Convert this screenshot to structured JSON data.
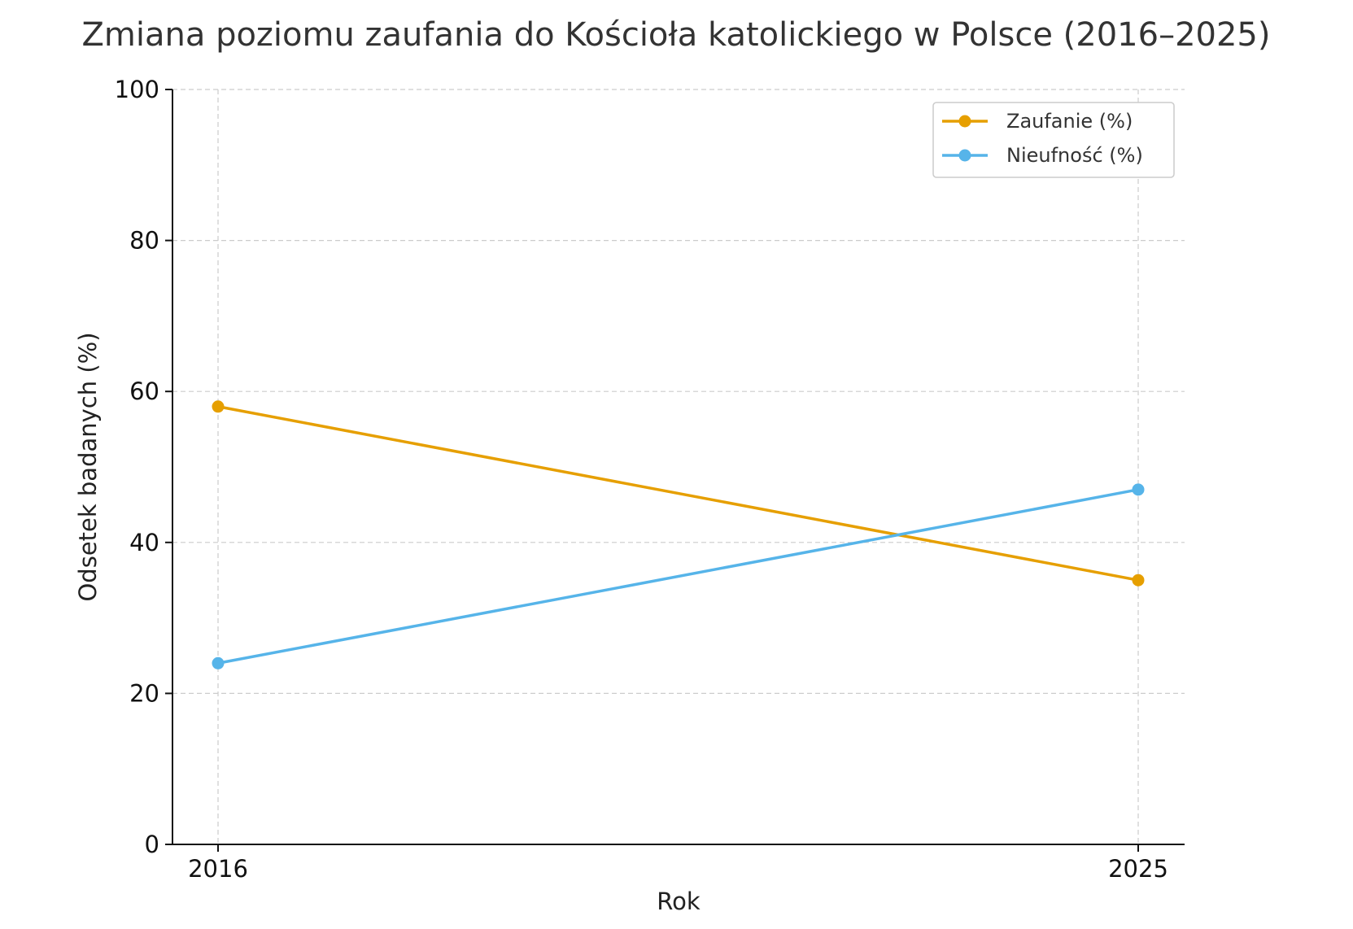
{
  "chart_data": {
    "type": "line",
    "title": "Zmiana poziomu zaufania do Kościoła katolickiego w Polsce (2016–2025)",
    "xlabel": "Rok",
    "ylabel": "Odsetek badanych (%)",
    "x": [
      "2016",
      "2025"
    ],
    "ylim": [
      0,
      100
    ],
    "yticks": [
      "0",
      "20",
      "40",
      "60",
      "80",
      "100"
    ],
    "grid": true,
    "legend_position": "top-right",
    "series": [
      {
        "name": "Zaufanie (%)",
        "values": [
          58,
          35
        ],
        "color": "#E69F00"
      },
      {
        "name": "Nieufność (%)",
        "values": [
          24,
          47
        ],
        "color": "#56B4E9"
      }
    ]
  }
}
